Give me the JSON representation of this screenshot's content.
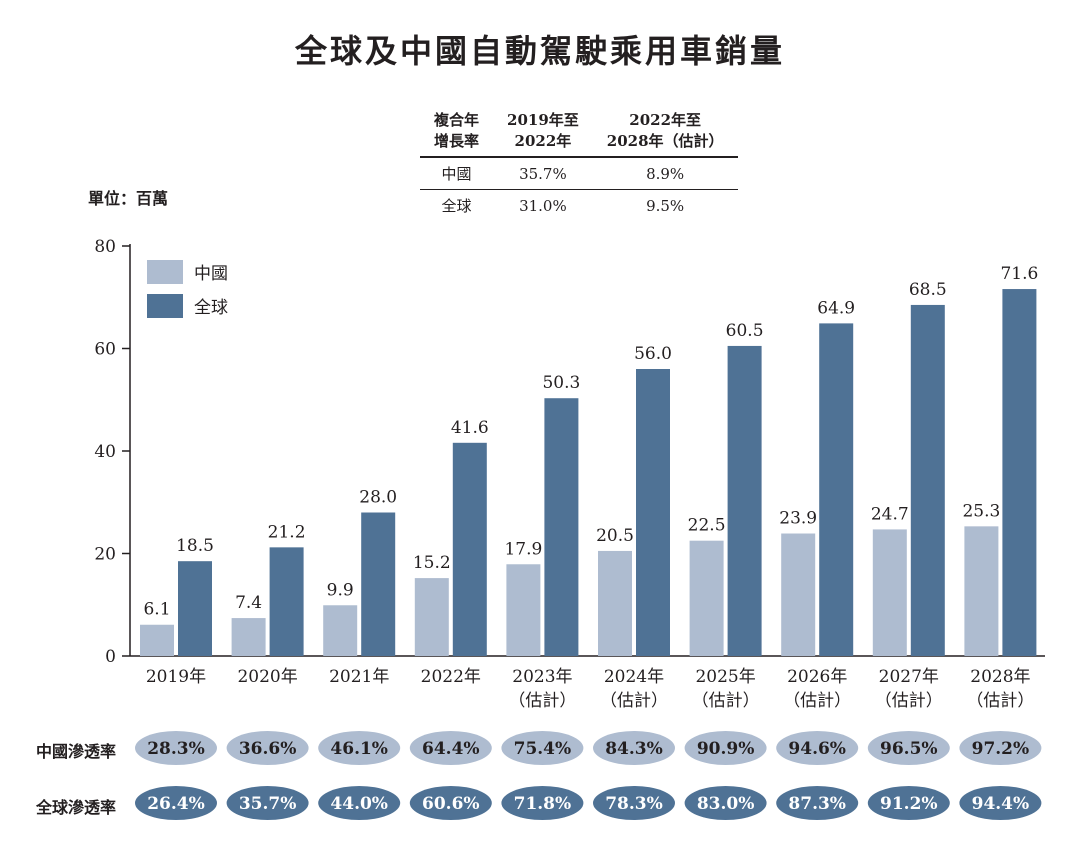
{
  "title": "全球及中國自動駕駛乘用車銷量",
  "unit_label": "單位：百萬",
  "cagr_table": {
    "header": [
      "複合年\n增長率",
      "2019年至\n2022年",
      "2022年至\n2028年（估計）"
    ],
    "rows": [
      {
        "label": "中國",
        "v1": "35.7%",
        "v2": "8.9%"
      },
      {
        "label": "全球",
        "v1": "31.0%",
        "v2": "9.5%"
      }
    ]
  },
  "colors": {
    "china": "#aebcd0",
    "global": "#4f7295",
    "axis": "#231f20"
  },
  "chart_data": {
    "type": "bar",
    "title": "全球及中國自動駕駛乘用車銷量",
    "ylabel": "單位：百萬",
    "ylim": [
      0,
      80
    ],
    "yticks": [
      0,
      20,
      40,
      60,
      80
    ],
    "legend_position": "top-left",
    "categories": [
      "2019年",
      "2020年",
      "2021年",
      "2022年",
      "2023年\n（估計）",
      "2024年\n（估計）",
      "2025年\n（估計）",
      "2026年\n（估計）",
      "2027年\n（估計）",
      "2028年\n（估計）"
    ],
    "series": [
      {
        "name": "中國",
        "values": [
          6.1,
          7.4,
          9.9,
          15.2,
          17.9,
          20.5,
          22.5,
          23.9,
          24.7,
          25.3
        ]
      },
      {
        "name": "全球",
        "values": [
          18.5,
          21.2,
          28.0,
          41.6,
          50.3,
          56.0,
          60.5,
          64.9,
          68.5,
          71.6
        ]
      }
    ]
  },
  "penetration": {
    "china_label": "中國滲透率",
    "global_label": "全球滲透率",
    "china": [
      "28.3%",
      "36.6%",
      "46.1%",
      "64.4%",
      "75.4%",
      "84.3%",
      "90.9%",
      "94.6%",
      "96.5%",
      "97.2%"
    ],
    "global": [
      "26.4%",
      "35.7%",
      "44.0%",
      "60.6%",
      "71.8%",
      "78.3%",
      "83.0%",
      "87.3%",
      "91.2%",
      "94.4%"
    ]
  }
}
